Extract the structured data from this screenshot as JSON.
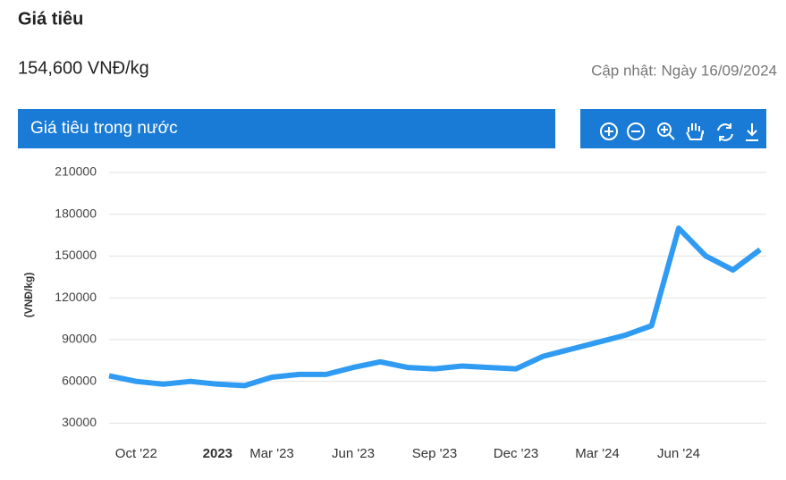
{
  "header": {
    "title": "Giá tiêu",
    "price": "154,600 VNĐ/kg",
    "updated": "Cập nhật: Ngày 16/09/2024"
  },
  "panel": {
    "title": "Giá tiêu trong nước"
  },
  "chart_data": {
    "type": "line",
    "ylabel": "(VNĐ/kg)",
    "x": [
      "2022-09",
      "2022-10",
      "2022-11",
      "2022-12",
      "2023-01",
      "2023-02",
      "2023-03",
      "2023-04",
      "2023-05",
      "2023-06",
      "2023-07",
      "2023-08",
      "2023-09",
      "2023-10",
      "2023-11",
      "2023-12",
      "2024-01",
      "2024-02",
      "2024-03",
      "2024-04",
      "2024-05",
      "2024-06",
      "2024-07",
      "2024-08",
      "2024-09"
    ],
    "series": [
      {
        "name": "Giá tiêu",
        "color": "#2f9bf2",
        "values": [
          64000,
          60000,
          58000,
          60000,
          58000,
          57000,
          63000,
          65000,
          65000,
          70000,
          74000,
          70000,
          69000,
          71000,
          70000,
          69000,
          78000,
          83000,
          88000,
          93000,
          100000,
          170000,
          150000,
          140000,
          154600
        ]
      }
    ],
    "xlim": [
      "2022-09",
      "2024-09"
    ],
    "xticks": [
      {
        "value": "2022-10",
        "label": "Oct '22"
      },
      {
        "value": "2023-01",
        "label": "2023"
      },
      {
        "value": "2023-03",
        "label": "Mar '23"
      },
      {
        "value": "2023-06",
        "label": "Jun '23"
      },
      {
        "value": "2023-09",
        "label": "Sep '23"
      },
      {
        "value": "2023-12",
        "label": "Dec '23"
      },
      {
        "value": "2024-03",
        "label": "Mar '24"
      },
      {
        "value": "2024-06",
        "label": "Jun '24"
      }
    ],
    "ylim": [
      20000,
      210000
    ],
    "yticks": [
      30000,
      60000,
      90000,
      120000,
      150000,
      180000,
      210000
    ],
    "grid": true
  }
}
